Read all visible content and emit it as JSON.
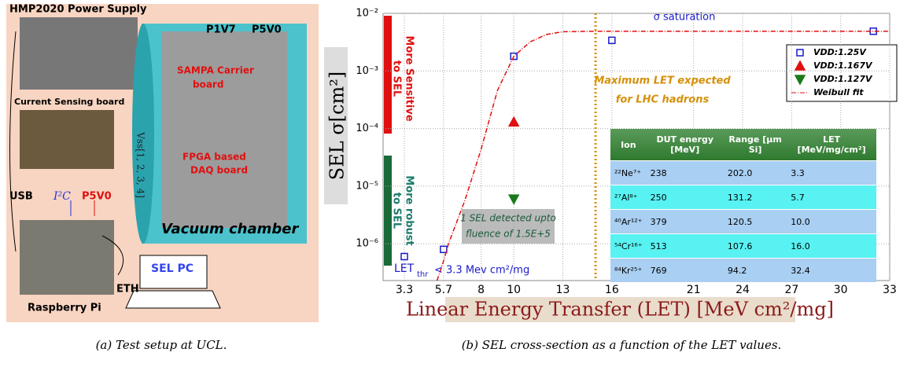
{
  "figure_a": {
    "labels": {
      "power_supply": "HMP2020 Power Supply",
      "p1v7": "P1V7",
      "p5v0_top": "P5V0",
      "sampa": [
        "SAMPA Carrier",
        "board"
      ],
      "current_sensing": "Current Sensing board",
      "vss": "Vss[1, 2, 3, 4]",
      "fpga": [
        "FPGA based",
        "DAQ board"
      ],
      "usb": "USB",
      "i2c": "I²C",
      "p5v0": "P5V0",
      "chamber": "Vacuum chamber",
      "sel_pc": "SEL PC",
      "eth": "ETH",
      "rpi": "Raspberry Pi"
    },
    "caption": "(a) Test setup at UCL."
  },
  "chart_data": {
    "type": "scatter",
    "y_label": "SEL σ[cm²]",
    "x_label": "Linear Energy Transfer (LET) [MeV cm²/mg]",
    "log_y": true,
    "grid": true,
    "legend": "upper right",
    "xlim": [
      2,
      33
    ],
    "xticks": [
      3.3,
      5.7,
      8,
      10,
      13,
      16,
      21,
      24,
      27,
      30,
      33
    ],
    "ylim": [
      2.3e-07,
      0.01
    ],
    "yticks": [
      {
        "value": 1e-06,
        "label": "10⁻⁶"
      },
      {
        "value": 1e-05,
        "label": "10⁻⁵"
      },
      {
        "value": 0.0001,
        "label": "10⁻⁴"
      },
      {
        "value": 0.001,
        "label": "10⁻³"
      },
      {
        "value": 0.01,
        "label": "10⁻²"
      }
    ],
    "series": [
      {
        "name": "VDD:1.25V",
        "color": "#1a1acc",
        "marker": "square",
        "x": [
          3.3,
          5.7,
          10,
          16,
          32
        ],
        "values": [
          6e-07,
          8e-07,
          0.0018,
          0.0034,
          0.0049
        ]
      },
      {
        "name": "VDD:1.167V",
        "color": "#e01010",
        "marker": "triangle-up",
        "x": [
          10
        ],
        "values": [
          0.00013
        ]
      },
      {
        "name": "VDD:1.127V",
        "color": "#1a7a1a",
        "marker": "triangle-down",
        "x": [
          10
        ],
        "values": [
          6e-06
        ]
      },
      {
        "name": "Weibull fit",
        "color": "#e01010",
        "marker": "line",
        "x": [
          5.3,
          5.7,
          6,
          7,
          8,
          9,
          10,
          11,
          12,
          13,
          15,
          20,
          33
        ],
        "values": [
          2.3e-07,
          5e-07,
          1e-06,
          5.6e-06,
          4.4e-05,
          0.00046,
          0.0018,
          0.0032,
          0.0043,
          0.0048,
          0.0049,
          0.0049,
          0.0049
        ]
      }
    ],
    "vline": {
      "x": 15,
      "color": "#d4900a",
      "label": [
        "Maximum LET expected",
        "for LHC hadrons"
      ]
    },
    "annotations": {
      "saturation": "σ saturation",
      "sensitive": [
        "More Sensitive",
        "to SEL"
      ],
      "robust": [
        "More robust",
        "to SEL"
      ],
      "detected": [
        "1 SEL detected upto",
        "fluence of 1.5E+5"
      ],
      "let_thr": [
        "LET",
        "thr",
        "< 3.3 Mev cm²/mg"
      ]
    },
    "table": {
      "header": [
        "Ion",
        "DUT energy [MeV]",
        "Range [µm Si]",
        "LET [MeV/mg/cm²]"
      ],
      "rows": [
        [
          "²²Ne⁷⁺",
          "238",
          "202.0",
          "3.3"
        ],
        [
          "²⁷Al⁸⁺",
          "250",
          "131.2",
          "5.7"
        ],
        [
          "⁴⁰Ar¹²⁺",
          "379",
          "120.5",
          "10.0"
        ],
        [
          "⁵⁴Cr¹⁶⁺",
          "513",
          "107.6",
          "16.0"
        ],
        [
          "⁸⁴Kr²⁵⁺",
          "769",
          "94.2",
          "32.4"
        ]
      ]
    },
    "caption": "(b) SEL cross-section as a function of the LET values."
  }
}
